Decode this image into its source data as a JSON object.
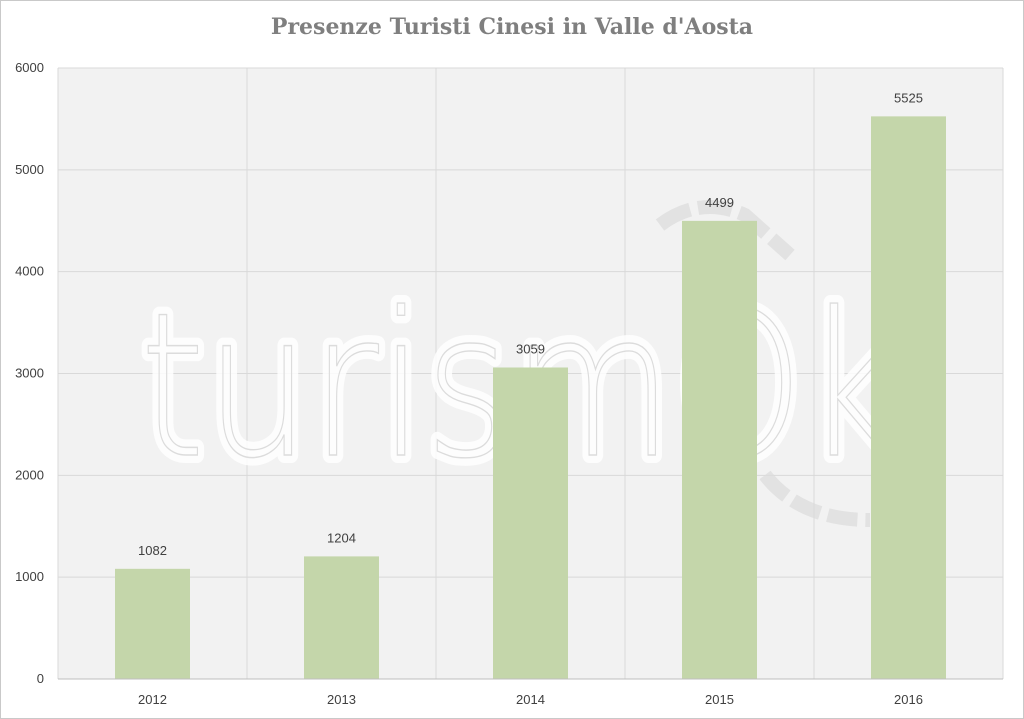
{
  "chart_data": {
    "type": "bar",
    "title": "Presenze Turisti Cinesi in Valle d'Aosta",
    "categories": [
      "2012",
      "2013",
      "2014",
      "2015",
      "2016"
    ],
    "values": [
      1082,
      1204,
      3059,
      4499,
      5525
    ],
    "data_labels": [
      "1082",
      "1204",
      "3059",
      "4499",
      "5525"
    ],
    "xlabel": "",
    "ylabel": "",
    "ylim": [
      0,
      6000
    ],
    "yticks": [
      "0",
      "1000",
      "2000",
      "3000",
      "4000",
      "5000",
      "6000"
    ],
    "grid": true,
    "legend": "none",
    "bar_color": "#c4d6aa",
    "plot_background": "#f2f2f2",
    "gridline_color": "#d9d9d9"
  },
  "watermark": {
    "logo_text": "turismOk"
  }
}
